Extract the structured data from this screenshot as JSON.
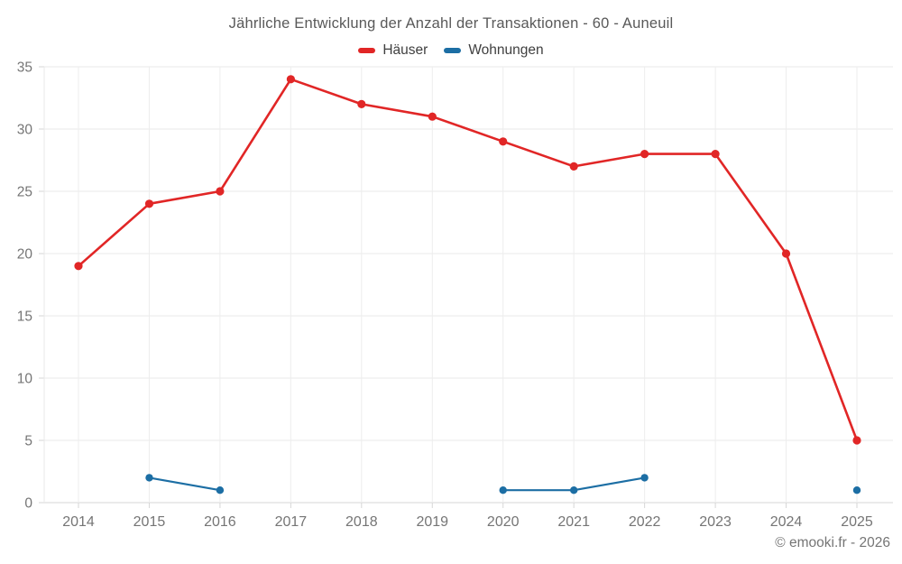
{
  "chart_data": {
    "type": "line",
    "title": "Jährliche Entwicklung der Anzahl der Transaktionen - 60 - Auneuil",
    "categories": [
      "2014",
      "2015",
      "2016",
      "2017",
      "2018",
      "2019",
      "2020",
      "2021",
      "2022",
      "2023",
      "2024",
      "2025"
    ],
    "series": [
      {
        "name": "Häuser",
        "color": "#e12626",
        "values": [
          19,
          24,
          25,
          34,
          32,
          31,
          29,
          27,
          28,
          28,
          20,
          5
        ]
      },
      {
        "name": "Wohnungen",
        "color": "#1c6ea4",
        "values": [
          null,
          2,
          1,
          null,
          null,
          null,
          1,
          1,
          2,
          null,
          null,
          1
        ]
      }
    ],
    "ylim": [
      0,
      35
    ],
    "yticks": [
      0,
      5,
      10,
      15,
      20,
      25,
      30,
      35
    ],
    "xlabel": "",
    "ylabel": "",
    "grid": true,
    "legend_position": "top"
  },
  "footer": "© emooki.fr - 2026"
}
